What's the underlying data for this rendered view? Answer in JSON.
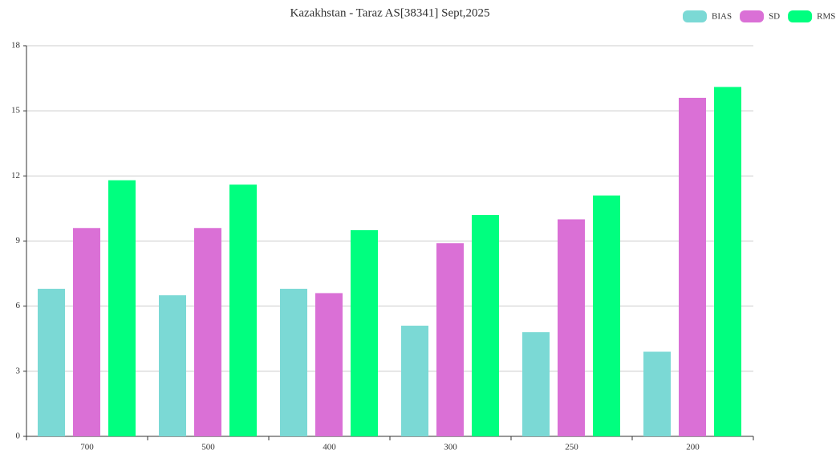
{
  "chart_data": {
    "type": "bar",
    "title": "Kazakhstan - Taraz AS[38341] Sept,2025",
    "categories": [
      "700",
      "500",
      "400",
      "300",
      "250",
      "200"
    ],
    "series": [
      {
        "name": "BIAS",
        "color": "#7bd9d5",
        "values": [
          6.8,
          6.5,
          6.8,
          5.1,
          4.8,
          3.9
        ]
      },
      {
        "name": "SD",
        "color": "#da70d6",
        "values": [
          9.6,
          9.6,
          6.6,
          8.9,
          10.0,
          15.6
        ]
      },
      {
        "name": "RMS",
        "color": "#00ff7f",
        "values": [
          11.8,
          11.6,
          9.5,
          10.2,
          11.1,
          16.1
        ]
      }
    ],
    "ylim": [
      0,
      18
    ],
    "yticks": [
      0,
      3,
      6,
      9,
      12,
      15,
      18
    ],
    "grid": true,
    "legend": "top-right"
  }
}
